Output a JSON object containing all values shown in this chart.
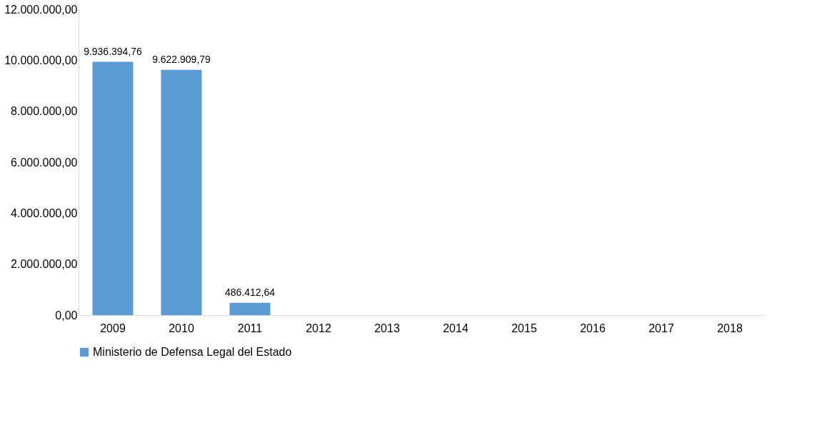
{
  "chart_data": {
    "type": "bar",
    "categories": [
      "2009",
      "2010",
      "2011",
      "2012",
      "2013",
      "2014",
      "2015",
      "2016",
      "2017",
      "2018"
    ],
    "series": [
      {
        "name": "Ministerio de Defensa Legal del Estado",
        "color": "#5b9bd5",
        "values": [
          9936394.76,
          9622909.79,
          486412.64,
          null,
          null,
          null,
          null,
          null,
          null,
          null
        ],
        "value_labels": [
          "9.936.394,76",
          "9.622.909,79",
          "486.412,64",
          null,
          null,
          null,
          null,
          null,
          null,
          null
        ]
      }
    ],
    "ylim": [
      0,
      12000000
    ],
    "yticks": [
      {
        "value": 0,
        "label": "0,00"
      },
      {
        "value": 2000000,
        "label": "2.000.000,00"
      },
      {
        "value": 4000000,
        "label": "4.000.000,00"
      },
      {
        "value": 6000000,
        "label": "6.000.000,00"
      },
      {
        "value": 8000000,
        "label": "8.000.000,00"
      },
      {
        "value": 10000000,
        "label": "10.000.000,00"
      },
      {
        "value": 12000000,
        "label": "12.000.000,00"
      }
    ],
    "grid": false,
    "legend": "bottom"
  }
}
